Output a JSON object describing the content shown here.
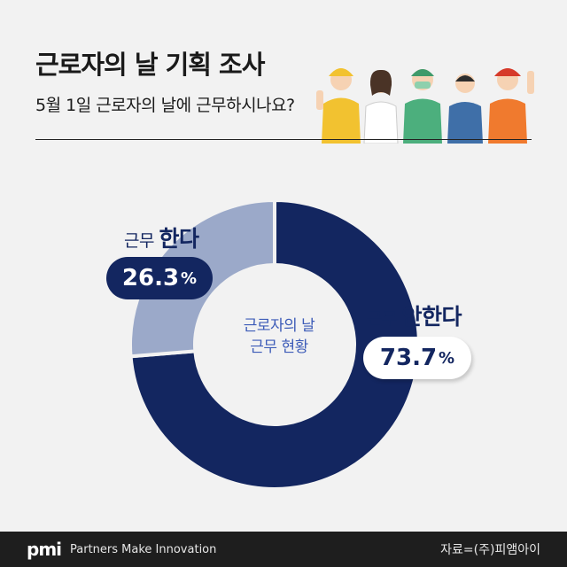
{
  "header": {
    "title": "근로자의 날 기획 조사",
    "subtitle": "5월 1일 근로자의 날에 근무하시나요?"
  },
  "chart_data": {
    "type": "pie",
    "title": "근로자의 날 기획 조사",
    "subtitle": "5월 1일 근로자의 날에 근무하시나요?",
    "center_label": [
      "근로자의 날",
      "근무 현황"
    ],
    "slices": [
      {
        "label_prefix": "근무",
        "label_emph": "한다",
        "value": 26.3,
        "display": "26.3",
        "color": "#9ba9c9"
      },
      {
        "label_prefix": "근무",
        "label_emph": "안한다",
        "value": 73.7,
        "display": "73.7",
        "color": "#132660"
      }
    ],
    "unit": "%"
  },
  "footer": {
    "logo": "pmi",
    "tagline": "Partners Make Innovation",
    "source": "자료=(주)피앰아이"
  },
  "illustration": {
    "icon": "workers-illustration",
    "colors": [
      "#f2c230",
      "#ffffff",
      "#4caf7d",
      "#3f6fa8",
      "#f07a2e"
    ]
  }
}
